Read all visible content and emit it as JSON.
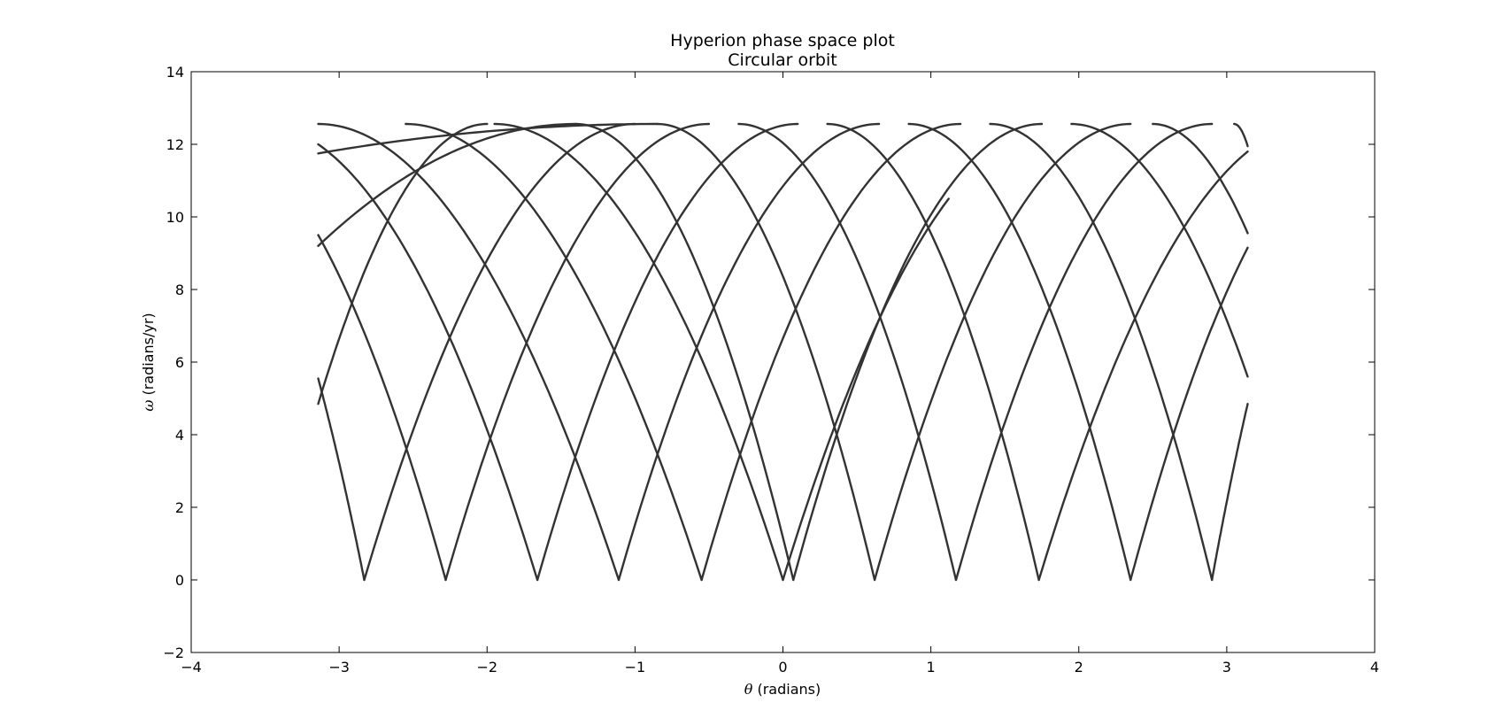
{
  "chart_data": {
    "type": "line",
    "title": "Hyperion  phase space plot",
    "subtitle": "Circular orbit",
    "xlabel_symbol": "θ",
    "xlabel_text": " (radians)",
    "ylabel_symbol": "ω",
    "ylabel_text": " (radians/yr)",
    "xlim": [
      -4,
      4
    ],
    "ylim": [
      -2,
      14
    ],
    "xticks": [
      -4,
      -3,
      -2,
      -1,
      0,
      1,
      2,
      3,
      4
    ],
    "xtick_labels": [
      "−4",
      "−3",
      "−2",
      "−1",
      "0",
      "1",
      "2",
      "3",
      "4"
    ],
    "yticks": [
      -2,
      0,
      2,
      4,
      6,
      8,
      10,
      12,
      14
    ],
    "ytick_labels": [
      "−2",
      "0",
      "2",
      "4",
      "6",
      "8",
      "10",
      "12",
      "14"
    ],
    "grid": false,
    "line_color": "#333333",
    "series": [
      {
        "x": [
          -2.83,
          -3.1416
        ],
        "y": [
          0,
          5.55
        ]
      },
      {
        "x": [
          -2.83,
          -1.0
        ],
        "y": [
          0,
          12.56
        ]
      },
      {
        "x": [
          -2.28,
          -3.1416
        ],
        "y": [
          0,
          9.5
        ]
      },
      {
        "x": [
          -2.28,
          -0.5
        ],
        "y": [
          0,
          12.56
        ]
      },
      {
        "x": [
          -1.66,
          -3.1416
        ],
        "y": [
          0,
          12.0
        ]
      },
      {
        "x": [
          -1.66,
          0.1
        ],
        "y": [
          0,
          12.56
        ]
      },
      {
        "x": [
          -1.11,
          -3.1416
        ],
        "y": [
          0,
          12.56
        ]
      },
      {
        "x": [
          -1.11,
          0.65
        ],
        "y": [
          0,
          12.56
        ]
      },
      {
        "x": [
          -0.55,
          -2.55
        ],
        "y": [
          0,
          12.56
        ]
      },
      {
        "x": [
          -0.55,
          1.2
        ],
        "y": [
          0,
          12.56
        ]
      },
      {
        "x": [
          0.0,
          -1.95
        ],
        "y": [
          0,
          12.56
        ]
      },
      {
        "x": [
          0.0,
          1.12
        ],
        "y": [
          0,
          10.5
        ]
      },
      {
        "x": [
          0.07,
          -1.4
        ],
        "y": [
          0,
          12.56
        ]
      },
      {
        "x": [
          0.07,
          1.75
        ],
        "y": [
          0,
          12.56
        ]
      },
      {
        "x": [
          0.62,
          -0.85
        ],
        "y": [
          0,
          12.56
        ]
      },
      {
        "x": [
          0.62,
          2.35
        ],
        "y": [
          0,
          12.56
        ]
      },
      {
        "x": [
          1.17,
          -0.3
        ],
        "y": [
          0,
          12.56
        ]
      },
      {
        "x": [
          1.17,
          2.9
        ],
        "y": [
          0,
          12.56
        ]
      },
      {
        "x": [
          1.73,
          0.3
        ],
        "y": [
          0,
          12.56
        ]
      },
      {
        "x": [
          1.73,
          3.1416
        ],
        "y": [
          0,
          11.8
        ]
      },
      {
        "x": [
          2.35,
          0.85
        ],
        "y": [
          0,
          12.56
        ]
      },
      {
        "x": [
          2.35,
          3.1416
        ],
        "y": [
          0,
          9.15
        ]
      },
      {
        "x": [
          2.9,
          1.4
        ],
        "y": [
          0,
          12.56
        ]
      },
      {
        "x": [
          2.9,
          3.1416
        ],
        "y": [
          0,
          4.85
        ]
      },
      {
        "x": [
          -3.1416,
          -2.0
        ],
        "y": [
          4.85,
          12.56
        ]
      },
      {
        "x": [
          -3.1416,
          -1.4
        ],
        "y": [
          9.2,
          12.56
        ]
      },
      {
        "x": [
          -3.1416,
          -0.85
        ],
        "y": [
          11.75,
          12.56
        ]
      },
      {
        "x": [
          1.95,
          3.1416
        ],
        "y": [
          12.56,
          5.6
        ]
      },
      {
        "x": [
          2.5,
          3.1416
        ],
        "y": [
          12.56,
          9.55
        ]
      },
      {
        "x": [
          3.05,
          3.1416
        ],
        "y": [
          12.56,
          11.95
        ]
      }
    ]
  }
}
